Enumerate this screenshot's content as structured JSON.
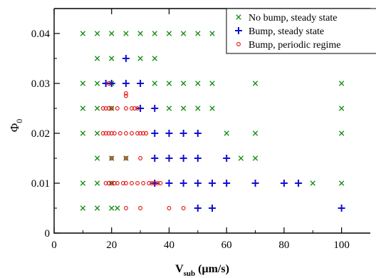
{
  "colors": {
    "no_bump_steady": "#1a8f1a",
    "bump_steady": "#1010d0",
    "bump_periodic": "#e01010"
  },
  "chart_data": {
    "type": "scatter",
    "title": "",
    "xlabel_main": "V",
    "xlabel_sub": "sub",
    "xlabel_unit": " (μm/s)",
    "ylabel_main": "Φ",
    "ylabel_sub": "0",
    "xlim": [
      0,
      110
    ],
    "ylim": [
      0,
      0.045
    ],
    "xticks": [
      0,
      20,
      40,
      60,
      80,
      100
    ],
    "yticks": [
      0,
      0.01,
      0.02,
      0.03,
      0.04
    ],
    "ytick_labels": [
      "0",
      "0.01",
      "0.02",
      "0.03",
      "0.04"
    ],
    "grid": false,
    "legend_position": "top-right",
    "series": [
      {
        "name": "No bump, steady state",
        "marker": "x",
        "points": [
          [
            10,
            0.04
          ],
          [
            15,
            0.04
          ],
          [
            20,
            0.04
          ],
          [
            25,
            0.04
          ],
          [
            30,
            0.04
          ],
          [
            35,
            0.04
          ],
          [
            40,
            0.04
          ],
          [
            45,
            0.04
          ],
          [
            50,
            0.04
          ],
          [
            55,
            0.04
          ],
          [
            15,
            0.035
          ],
          [
            20,
            0.035
          ],
          [
            30,
            0.035
          ],
          [
            35,
            0.035
          ],
          [
            10,
            0.03
          ],
          [
            15,
            0.03
          ],
          [
            20,
            0.03
          ],
          [
            35,
            0.03
          ],
          [
            40,
            0.03
          ],
          [
            45,
            0.03
          ],
          [
            50,
            0.03
          ],
          [
            55,
            0.03
          ],
          [
            70,
            0.03
          ],
          [
            100,
            0.03
          ],
          [
            10,
            0.025
          ],
          [
            15,
            0.025
          ],
          [
            20,
            0.025
          ],
          [
            40,
            0.025
          ],
          [
            45,
            0.025
          ],
          [
            50,
            0.025
          ],
          [
            55,
            0.025
          ],
          [
            100,
            0.025
          ],
          [
            10,
            0.02
          ],
          [
            15,
            0.02
          ],
          [
            60,
            0.02
          ],
          [
            70,
            0.02
          ],
          [
            100,
            0.02
          ],
          [
            15,
            0.015
          ],
          [
            20,
            0.015
          ],
          [
            25,
            0.015
          ],
          [
            65,
            0.015
          ],
          [
            70,
            0.015
          ],
          [
            10,
            0.01
          ],
          [
            15,
            0.01
          ],
          [
            20,
            0.01
          ],
          [
            90,
            0.01
          ],
          [
            100,
            0.01
          ],
          [
            10,
            0.005
          ],
          [
            15,
            0.005
          ],
          [
            20,
            0.005
          ],
          [
            22,
            0.005
          ]
        ]
      },
      {
        "name": "Bump, steady state",
        "marker": "+",
        "points": [
          [
            25,
            0.035
          ],
          [
            18,
            0.03
          ],
          [
            20,
            0.03
          ],
          [
            25,
            0.03
          ],
          [
            30,
            0.03
          ],
          [
            30,
            0.025
          ],
          [
            35,
            0.025
          ],
          [
            35,
            0.02
          ],
          [
            40,
            0.02
          ],
          [
            45,
            0.02
          ],
          [
            50,
            0.02
          ],
          [
            35,
            0.015
          ],
          [
            40,
            0.015
          ],
          [
            45,
            0.015
          ],
          [
            50,
            0.015
          ],
          [
            60,
            0.015
          ],
          [
            35,
            0.01
          ],
          [
            40,
            0.01
          ],
          [
            45,
            0.01
          ],
          [
            50,
            0.01
          ],
          [
            55,
            0.01
          ],
          [
            60,
            0.01
          ],
          [
            70,
            0.01
          ],
          [
            80,
            0.01
          ],
          [
            85,
            0.01
          ],
          [
            50,
            0.005
          ],
          [
            55,
            0.005
          ],
          [
            100,
            0.005
          ]
        ]
      },
      {
        "name": "Bump, periodic regime",
        "marker": "o",
        "points": [
          [
            19,
            0.03
          ],
          [
            25,
            0.028
          ],
          [
            25,
            0.0275
          ],
          [
            17,
            0.025
          ],
          [
            18,
            0.025
          ],
          [
            19,
            0.025
          ],
          [
            20,
            0.025
          ],
          [
            22,
            0.025
          ],
          [
            25,
            0.025
          ],
          [
            27,
            0.025
          ],
          [
            28,
            0.025
          ],
          [
            29,
            0.025
          ],
          [
            17,
            0.02
          ],
          [
            18,
            0.02
          ],
          [
            19,
            0.02
          ],
          [
            20,
            0.02
          ],
          [
            21,
            0.02
          ],
          [
            23,
            0.02
          ],
          [
            25,
            0.02
          ],
          [
            27,
            0.02
          ],
          [
            29,
            0.02
          ],
          [
            30,
            0.02
          ],
          [
            31,
            0.02
          ],
          [
            32,
            0.02
          ],
          [
            20,
            0.015
          ],
          [
            25,
            0.015
          ],
          [
            30,
            0.015
          ],
          [
            18,
            0.01
          ],
          [
            19,
            0.01
          ],
          [
            20,
            0.01
          ],
          [
            21,
            0.01
          ],
          [
            22,
            0.01
          ],
          [
            24,
            0.01
          ],
          [
            25,
            0.01
          ],
          [
            27,
            0.01
          ],
          [
            29,
            0.01
          ],
          [
            31,
            0.01
          ],
          [
            33,
            0.01
          ],
          [
            34,
            0.01
          ],
          [
            35,
            0.01
          ],
          [
            36,
            0.01
          ],
          [
            37,
            0.01
          ],
          [
            25,
            0.005
          ],
          [
            30,
            0.005
          ],
          [
            40,
            0.005
          ],
          [
            45,
            0.005
          ]
        ]
      }
    ]
  }
}
